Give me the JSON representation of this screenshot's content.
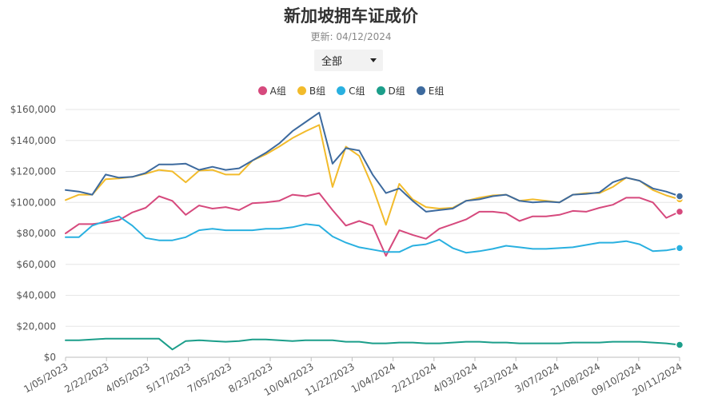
{
  "header": {
    "title": "新加坡拥车证成价",
    "updated": "更新: 04/12/2024"
  },
  "filter": {
    "selected": "全部"
  },
  "chart_data": {
    "type": "line",
    "title": "新加坡拥车证成价",
    "subtitle": "更新: 04/12/2024",
    "legend_position": "top-center",
    "grid": true,
    "ylim": [
      0,
      160000
    ],
    "y_ticks": [
      "$0",
      "$20,000",
      "$40,000",
      "$60,000",
      "$80,000",
      "$100,000",
      "$120,000",
      "$140,000",
      "$160,000"
    ],
    "x_tick_labels": [
      "1/05/2023",
      "2/22/2023",
      "4/05/2023",
      "5/17/2023",
      "7/05/2023",
      "8/23/2023",
      "10/04/2023",
      "11/22/2023",
      "1/04/2024",
      "2/21/2024",
      "4/03/2024",
      "5/23/2024",
      "3/07/2024",
      "21/08/2024",
      "09/10/2024",
      "20/11/2024"
    ],
    "series": [
      {
        "name": "A组",
        "color": "#d6497d",
        "values": [
          80000,
          86000,
          86000,
          87000,
          88500,
          93500,
          96500,
          104000,
          101000,
          92000,
          98000,
          96000,
          97000,
          95000,
          99500,
          100000,
          101000,
          105000,
          104000,
          106000,
          95000,
          85000,
          88000,
          85000,
          65500,
          82000,
          79000,
          76500,
          83000,
          86000,
          89000,
          94000,
          94000,
          93000,
          88000,
          91000,
          91000,
          92000,
          94500,
          94000,
          96500,
          98500,
          103000,
          103000,
          100000,
          90000,
          94000
        ]
      },
      {
        "name": "B组",
        "color": "#f2bb2b",
        "values": [
          101500,
          105000,
          105000,
          115000,
          115500,
          116500,
          118500,
          121000,
          120000,
          113000,
          120500,
          121000,
          118000,
          118000,
          127000,
          131000,
          136000,
          141500,
          146000,
          150000,
          110000,
          136000,
          130000,
          110000,
          85500,
          112000,
          102000,
          97000,
          96000,
          96500,
          101000,
          103000,
          104500,
          105000,
          101000,
          102000,
          101000,
          100000,
          105000,
          106000,
          106000,
          110000,
          116000,
          114000,
          108000,
          104500,
          102000
        ]
      },
      {
        "name": "C组",
        "color": "#29b0e0",
        "values": [
          77500,
          77500,
          85000,
          88000,
          91000,
          85000,
          77000,
          75500,
          75500,
          77500,
          82000,
          83000,
          82000,
          82000,
          82000,
          83000,
          83000,
          84000,
          86000,
          85000,
          78000,
          74000,
          71000,
          69500,
          68000,
          68000,
          72000,
          73000,
          76000,
          70500,
          67500,
          68500,
          70000,
          72000,
          71000,
          70000,
          70000,
          70500,
          71000,
          72500,
          74000,
          74000,
          75000,
          73000,
          68500,
          69000,
          70500
        ]
      },
      {
        "name": "D组",
        "color": "#1b9e8a",
        "values": [
          11000,
          11000,
          11500,
          12000,
          12000,
          12000,
          12000,
          12000,
          5000,
          10500,
          11000,
          10500,
          10000,
          10500,
          11500,
          11500,
          11000,
          10500,
          11000,
          11000,
          11000,
          10000,
          10000,
          9000,
          9000,
          9500,
          9500,
          9000,
          9000,
          9500,
          10000,
          10000,
          9500,
          9500,
          9000,
          9000,
          9000,
          9000,
          9500,
          9500,
          9500,
          10000,
          10000,
          10000,
          9500,
          9000,
          8000
        ]
      },
      {
        "name": "E组",
        "color": "#3d6a9e",
        "values": [
          108000,
          107000,
          105000,
          118000,
          116000,
          116500,
          119000,
          124500,
          124500,
          125000,
          121000,
          123000,
          121000,
          122000,
          127000,
          132000,
          138000,
          146000,
          152000,
          158000,
          125000,
          135000,
          133500,
          118000,
          106000,
          109000,
          101000,
          94000,
          95000,
          96000,
          101000,
          102000,
          104000,
          105000,
          101000,
          100000,
          100500,
          100000,
          105000,
          105500,
          106500,
          113000,
          116000,
          114000,
          109000,
          107000,
          104000
        ]
      }
    ]
  }
}
